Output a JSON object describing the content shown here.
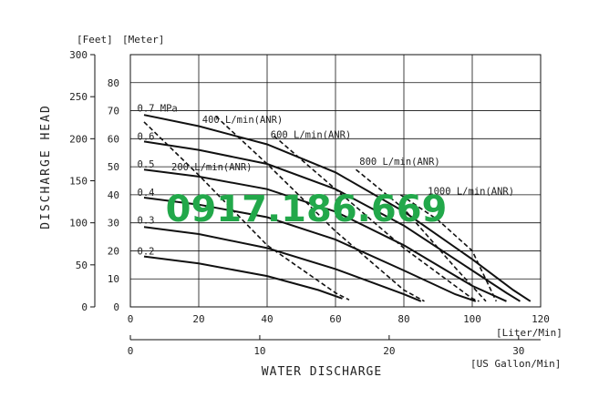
{
  "chart_data": {
    "type": "line",
    "title": "",
    "xlabel": "WATER DISCHARGE",
    "ylabel": "DISCHARGE HEAD",
    "x_axis_primary": {
      "unit": "[Liter/Min]",
      "range": [
        0,
        120
      ],
      "ticks": [
        "0",
        "20",
        "40",
        "60",
        "80",
        "100",
        "120"
      ]
    },
    "x_axis_secondary": {
      "unit": "[US Gallon/Min]",
      "range": [
        0,
        30
      ],
      "ticks": [
        "0",
        "10",
        "20",
        "30"
      ]
    },
    "y_axis_left": {
      "unit": "[Feet]",
      "range": [
        0,
        300
      ],
      "ticks": [
        "0",
        "50",
        "100",
        "150",
        "200",
        "250",
        "300"
      ]
    },
    "y_axis_right": {
      "unit": "[Meter]",
      "range": [
        0,
        90
      ],
      "ticks": [
        "0",
        "10",
        "20",
        "30",
        "40",
        "50",
        "60",
        "70",
        "80"
      ]
    },
    "grid": true,
    "pressure_labels": [
      "0.7 MPa",
      "0.6",
      "0.5",
      "0.4",
      "0.3",
      "0.2"
    ],
    "air_labels": [
      "400 L/min(ANR)",
      "600 L/min(ANR)",
      "800 L/min(ANR)",
      "1000 L/min(ANR)",
      "200 L/min(ANR)"
    ],
    "series": [
      {
        "kind": "pressure",
        "x": [
          4,
          20,
          40,
          60,
          80,
          100,
          112,
          117
        ],
        "y": [
          68.5,
          64.5,
          58,
          48,
          34,
          17,
          6,
          2
        ]
      },
      {
        "kind": "pressure",
        "x": [
          4,
          20,
          40,
          60,
          80,
          100,
          110,
          114
        ],
        "y": [
          59,
          56,
          51,
          42,
          29,
          13,
          5,
          2
        ]
      },
      {
        "kind": "pressure",
        "x": [
          4,
          20,
          40,
          60,
          80,
          100,
          110
        ],
        "y": [
          49,
          46.5,
          42,
          34,
          22,
          7.5,
          2
        ]
      },
      {
        "kind": "pressure",
        "x": [
          4,
          20,
          40,
          60,
          80,
          95,
          101
        ],
        "y": [
          39,
          36.5,
          32,
          24,
          13,
          4.5,
          2
        ]
      },
      {
        "kind": "pressure",
        "x": [
          4,
          20,
          40,
          60,
          80,
          85
        ],
        "y": [
          28.5,
          26,
          21,
          13.5,
          4.5,
          2
        ]
      },
      {
        "kind": "pressure",
        "x": [
          4,
          20,
          40,
          55,
          62
        ],
        "y": [
          18,
          15.5,
          11,
          6,
          3
        ]
      },
      {
        "kind": "air",
        "x": [
          4,
          20,
          40,
          60,
          64
        ],
        "y": [
          66,
          47,
          22,
          5,
          2.5
        ]
      },
      {
        "kind": "air",
        "x": [
          25,
          40,
          60,
          80,
          86
        ],
        "y": [
          68,
          51,
          27,
          6,
          2
        ]
      },
      {
        "kind": "air",
        "x": [
          42,
          60,
          80,
          100,
          102
        ],
        "y": [
          61,
          42,
          21,
          3,
          2
        ]
      },
      {
        "kind": "air",
        "x": [
          66,
          80,
          95,
          104
        ],
        "y": [
          49,
          35,
          14,
          2
        ]
      },
      {
        "kind": "air",
        "x": [
          79,
          90,
          100,
          107
        ],
        "y": [
          40,
          31,
          20,
          2
        ]
      }
    ]
  },
  "watermark": {
    "text": "0917.186.669",
    "color": "#22a84a"
  },
  "colors": {
    "line": "#111111",
    "grid": "#111111"
  }
}
